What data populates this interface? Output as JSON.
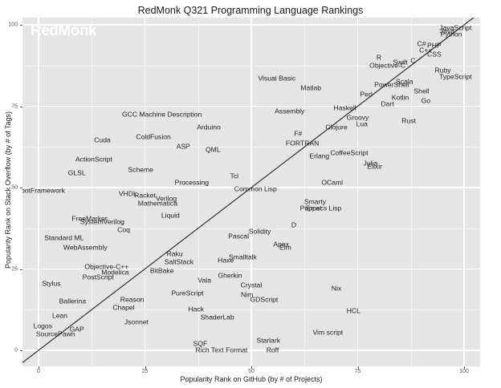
{
  "chart_data": {
    "type": "scatter",
    "title": "RedMonk Q321 Programming Language Rankings",
    "watermark": "RedMonk",
    "xlabel": "Popularity Rank on GitHub (by # of Projects)",
    "ylabel": "Popularity Rank on Stack Overflow (by # of Tags)",
    "xlim": [
      -4,
      104
    ],
    "ylim": [
      -4,
      102
    ],
    "xticks": [
      0,
      25,
      50,
      75,
      100
    ],
    "yticks": [
      0,
      25,
      50,
      75,
      100
    ],
    "grid": true,
    "reference_line": "y = x",
    "points": [
      {
        "label": "JavaScript",
        "x": 98,
        "y": 99
      },
      {
        "label": "Java",
        "x": 96,
        "y": 98
      },
      {
        "label": "Python",
        "x": 97,
        "y": 97
      },
      {
        "label": "PHP",
        "x": 93,
        "y": 93.5
      },
      {
        "label": "C#",
        "x": 90,
        "y": 94
      },
      {
        "label": "C++",
        "x": 91,
        "y": 92
      },
      {
        "label": "CSS",
        "x": 93,
        "y": 91
      },
      {
        "label": "R",
        "x": 80,
        "y": 90
      },
      {
        "label": "C",
        "x": 88,
        "y": 89
      },
      {
        "label": "Swift",
        "x": 85,
        "y": 88.5
      },
      {
        "label": "Objective-C",
        "x": 82,
        "y": 87.5
      },
      {
        "label": "Ruby",
        "x": 95,
        "y": 86
      },
      {
        "label": "TypeScript",
        "x": 98,
        "y": 84
      },
      {
        "label": "Visual Basic",
        "x": 56,
        "y": 83.5
      },
      {
        "label": "Scala",
        "x": 86,
        "y": 82.5
      },
      {
        "label": "PowerShell",
        "x": 83,
        "y": 81.5
      },
      {
        "label": "Matlab",
        "x": 64,
        "y": 80.5
      },
      {
        "label": "Shell",
        "x": 90,
        "y": 79.5
      },
      {
        "label": "Perl",
        "x": 77,
        "y": 78.5
      },
      {
        "label": "Kotlin",
        "x": 85,
        "y": 77.5
      },
      {
        "label": "Go",
        "x": 91,
        "y": 76.5
      },
      {
        "label": "Dart",
        "x": 82,
        "y": 75.5
      },
      {
        "label": "Haskell",
        "x": 72,
        "y": 74.5
      },
      {
        "label": "Assembly",
        "x": 59,
        "y": 73.5
      },
      {
        "label": "GCC Machine Description",
        "x": 29,
        "y": 72.5
      },
      {
        "label": "Groovy",
        "x": 75,
        "y": 71.5
      },
      {
        "label": "Rust",
        "x": 87,
        "y": 70.5
      },
      {
        "label": "Lua",
        "x": 76,
        "y": 69.5
      },
      {
        "label": "Arduino",
        "x": 40,
        "y": 68.5
      },
      {
        "label": "Clojure",
        "x": 70,
        "y": 68.5
      },
      {
        "label": "F#",
        "x": 61,
        "y": 66.5
      },
      {
        "label": "ColdFusion",
        "x": 27,
        "y": 65.5
      },
      {
        "label": "Cuda",
        "x": 15,
        "y": 64.5
      },
      {
        "label": "FORTRAN",
        "x": 62,
        "y": 63.5
      },
      {
        "label": "ASP",
        "x": 34,
        "y": 62.5
      },
      {
        "label": "QML",
        "x": 41,
        "y": 61.5
      },
      {
        "label": "CoffeeScript",
        "x": 73,
        "y": 60.5
      },
      {
        "label": "Erlang",
        "x": 66,
        "y": 59.5
      },
      {
        "label": "ActionScript",
        "x": 13,
        "y": 58.5
      },
      {
        "label": "Julia",
        "x": 78,
        "y": 57.5
      },
      {
        "label": "Elixir",
        "x": 79,
        "y": 56.5
      },
      {
        "label": "Scheme",
        "x": 24,
        "y": 55.5
      },
      {
        "label": "GLSL",
        "x": 9,
        "y": 54.5
      },
      {
        "label": "Tcl",
        "x": 46,
        "y": 53.5
      },
      {
        "label": "OCaml",
        "x": 69,
        "y": 51.5
      },
      {
        "label": "Processing",
        "x": 36,
        "y": 51.5
      },
      {
        "label": "Common Lisp",
        "x": 51,
        "y": 49.5
      },
      {
        "label": "RobotFramework",
        "x": 0,
        "y": 49
      },
      {
        "label": "VHDL",
        "x": 21,
        "y": 48
      },
      {
        "label": "Racket",
        "x": 25,
        "y": 47.5
      },
      {
        "label": "Verilog",
        "x": 30,
        "y": 46.5
      },
      {
        "label": "Smarty",
        "x": 65,
        "y": 45.5
      },
      {
        "label": "Mathematica",
        "x": 28,
        "y": 45
      },
      {
        "label": "Puppet",
        "x": 64,
        "y": 43.5
      },
      {
        "label": "Emacs Lisp",
        "x": 67,
        "y": 43.5
      },
      {
        "label": "Liquid",
        "x": 31,
        "y": 41.5
      },
      {
        "label": "FreeMarker",
        "x": 12,
        "y": 40.5
      },
      {
        "label": "SystemVerilog",
        "x": 15,
        "y": 39.5
      },
      {
        "label": "D",
        "x": 60,
        "y": 38.5
      },
      {
        "label": "Solidity",
        "x": 52,
        "y": 36.5
      },
      {
        "label": "Coq",
        "x": 20,
        "y": 37
      },
      {
        "label": "Standard ML",
        "x": 6,
        "y": 34.5
      },
      {
        "label": "Pascal",
        "x": 47,
        "y": 35
      },
      {
        "label": "Apex",
        "x": 57,
        "y": 32.5
      },
      {
        "label": "Elm",
        "x": 58,
        "y": 31.5
      },
      {
        "label": "WebAssembly",
        "x": 11,
        "y": 31.5
      },
      {
        "label": "Raku",
        "x": 32,
        "y": 29.5
      },
      {
        "label": "Smalltalk",
        "x": 48,
        "y": 28.5
      },
      {
        "label": "Haxe",
        "x": 44,
        "y": 27.5
      },
      {
        "label": "SaltStack",
        "x": 33,
        "y": 27
      },
      {
        "label": "Objective-C++",
        "x": 16,
        "y": 25.5
      },
      {
        "label": "BitBake",
        "x": 29,
        "y": 24.5
      },
      {
        "label": "Modelica",
        "x": 18,
        "y": 24
      },
      {
        "label": "Gherkin",
        "x": 45,
        "y": 23
      },
      {
        "label": "PostScript",
        "x": 14,
        "y": 22.5
      },
      {
        "label": "Vala",
        "x": 39,
        "y": 21.5
      },
      {
        "label": "Stylus",
        "x": 3,
        "y": 20.5
      },
      {
        "label": "Crystal",
        "x": 50,
        "y": 20
      },
      {
        "label": "Nix",
        "x": 70,
        "y": 19
      },
      {
        "label": "PureScript",
        "x": 35,
        "y": 17.5
      },
      {
        "label": "Nim",
        "x": 49,
        "y": 17
      },
      {
        "label": "Reason",
        "x": 22,
        "y": 15.5
      },
      {
        "label": "GDScript",
        "x": 53,
        "y": 15.5
      },
      {
        "label": "Ballerina",
        "x": 8,
        "y": 15
      },
      {
        "label": "Chapel",
        "x": 20,
        "y": 13
      },
      {
        "label": "Hack",
        "x": 37,
        "y": 12.5
      },
      {
        "label": "HCL",
        "x": 74,
        "y": 12
      },
      {
        "label": "Lean",
        "x": 5,
        "y": 10.5
      },
      {
        "label": "ShaderLab",
        "x": 42,
        "y": 10
      },
      {
        "label": "Jsonnet",
        "x": 23,
        "y": 8.5
      },
      {
        "label": "Logos",
        "x": 1,
        "y": 7.5
      },
      {
        "label": "GAP",
        "x": 9,
        "y": 6.5
      },
      {
        "label": "Vim script",
        "x": 68,
        "y": 5.5
      },
      {
        "label": "SourcePawn",
        "x": 4,
        "y": 5
      },
      {
        "label": "Starlark",
        "x": 54,
        "y": 3
      },
      {
        "label": "SQF",
        "x": 38,
        "y": 2
      },
      {
        "label": "Rich Text Format",
        "x": 43,
        "y": 0
      },
      {
        "label": "Roff",
        "x": 55,
        "y": 0
      }
    ]
  }
}
